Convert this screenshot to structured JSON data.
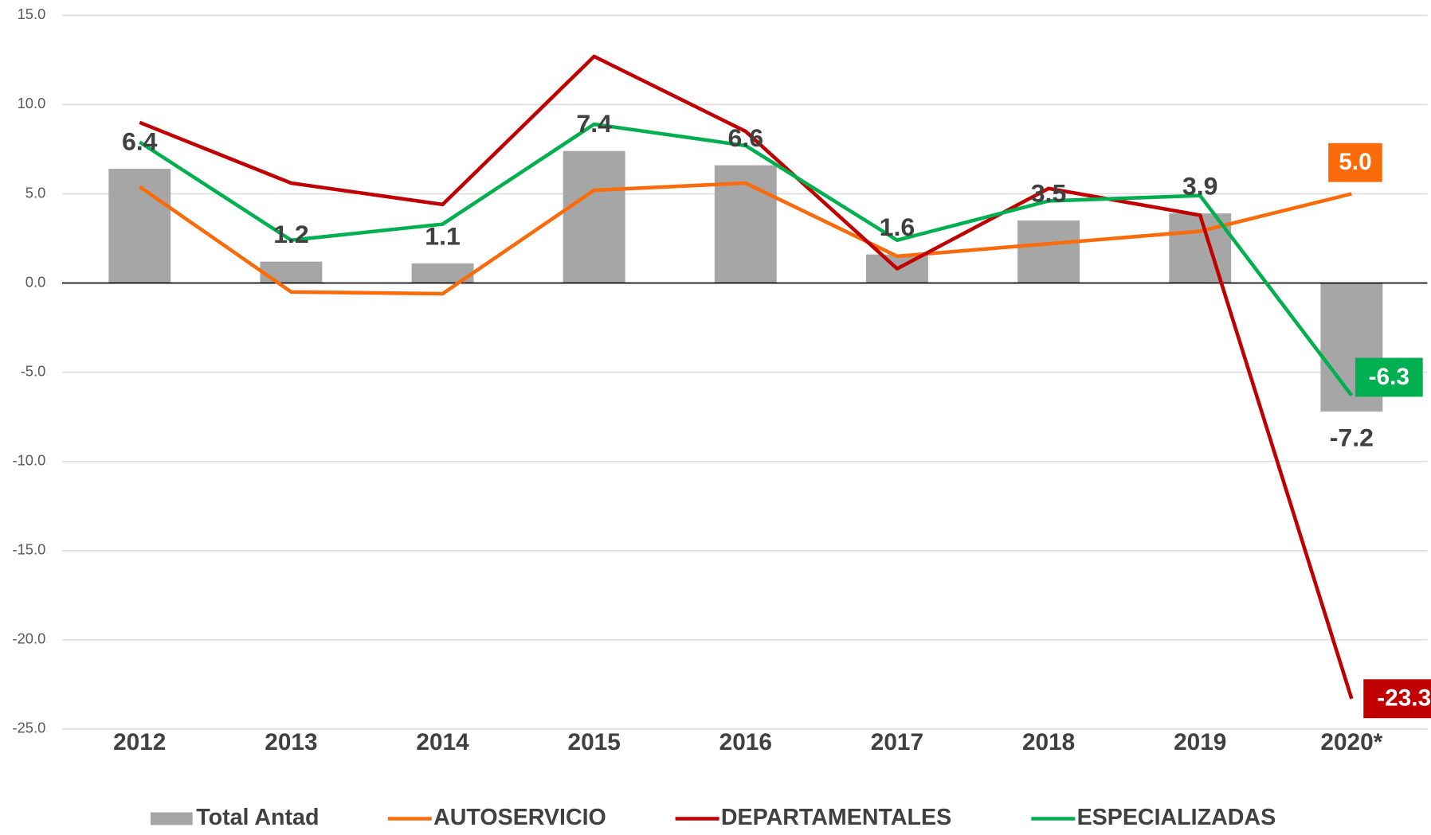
{
  "chart_data": {
    "type": "bar",
    "categories": [
      "2012",
      "2013",
      "2014",
      "2015",
      "2016",
      "2017",
      "2018",
      "2019",
      "2020*"
    ],
    "series": [
      {
        "name": "Total Antad",
        "type": "bar",
        "color": "#a6a6a6",
        "values": [
          6.4,
          1.2,
          1.1,
          7.4,
          6.6,
          1.6,
          3.5,
          3.9,
          -7.2
        ]
      },
      {
        "name": "AUTOSERVICIO",
        "type": "line",
        "color": "#fa6b0b",
        "values": [
          5.4,
          -0.5,
          -0.6,
          5.2,
          5.6,
          1.5,
          2.2,
          2.9,
          5.0
        ],
        "value_labels": [
          null,
          null,
          null,
          null,
          null,
          null,
          null,
          null,
          "5.0"
        ]
      },
      {
        "name": "DEPARTAMENTALES",
        "type": "line",
        "color": "#c00000",
        "values": [
          9.0,
          5.6,
          4.4,
          12.7,
          8.5,
          0.8,
          5.3,
          3.8,
          -23.3
        ],
        "value_labels": [
          null,
          null,
          null,
          null,
          null,
          null,
          null,
          null,
          "-23.3"
        ]
      },
      {
        "name": "ESPECIALIZADAS",
        "type": "line",
        "color": "#00b050",
        "values": [
          7.9,
          2.4,
          3.3,
          8.9,
          7.7,
          2.4,
          4.6,
          4.9,
          -6.3
        ],
        "value_labels": [
          null,
          null,
          null,
          null,
          null,
          null,
          null,
          null,
          "-6.3"
        ]
      }
    ],
    "ylim": [
      -25,
      15
    ],
    "yticks": [
      {
        "value": -25,
        "label": "-25.0"
      },
      {
        "value": -20,
        "label": "-20.0"
      },
      {
        "value": -15,
        "label": "-15.0"
      },
      {
        "value": -10,
        "label": "-10.0"
      },
      {
        "value": -5,
        "label": "-5.0"
      },
      {
        "value": 0,
        "label": "0.0"
      },
      {
        "value": 5,
        "label": "5.0"
      },
      {
        "value": 10,
        "label": "10.0"
      },
      {
        "value": 15,
        "label": "15.0"
      }
    ],
    "grid": true,
    "legend": "bottom"
  }
}
